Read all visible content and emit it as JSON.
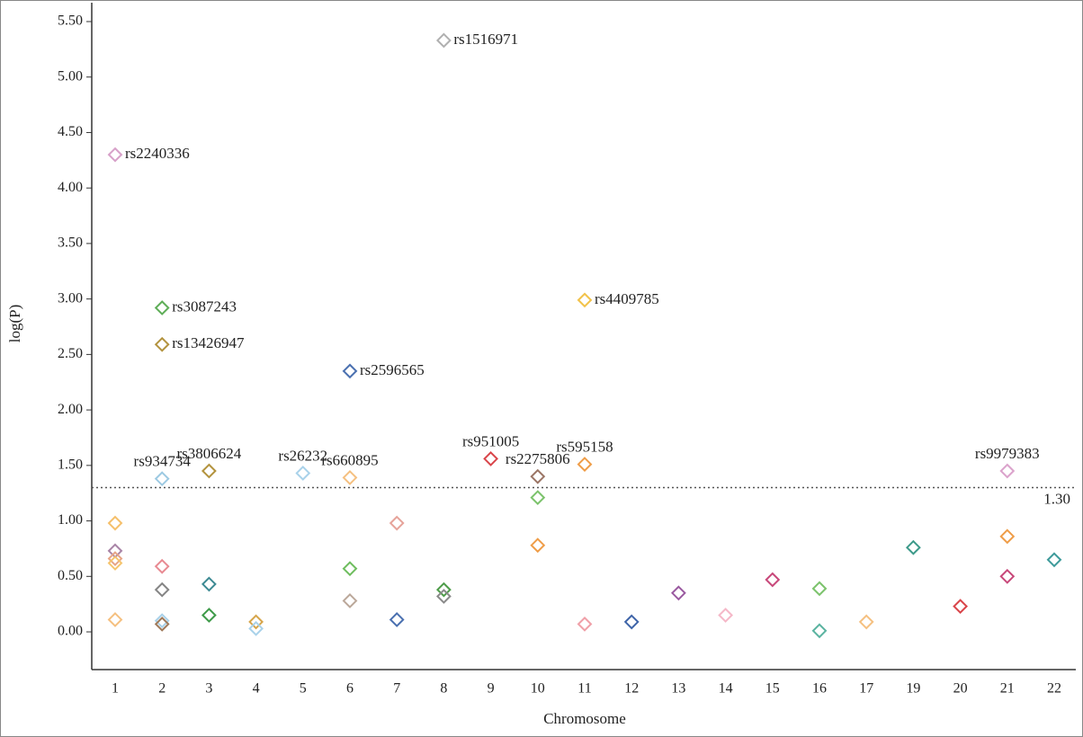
{
  "chart_data": {
    "type": "scatter",
    "x_label": "Chromosome",
    "y_label": "log(P)",
    "categories": [
      "1",
      "2",
      "3",
      "4",
      "5",
      "6",
      "7",
      "8",
      "9",
      "10",
      "11",
      "12",
      "13",
      "14",
      "15",
      "16",
      "17",
      "19",
      "20",
      "21",
      "22"
    ],
    "ylim": [
      -0.34,
      5.67
    ],
    "yticks": [
      {
        "value": 0,
        "label": "0.00"
      },
      {
        "value": 0.5,
        "label": "0.50"
      },
      {
        "value": 1,
        "label": "1.00"
      },
      {
        "value": 1.5,
        "label": "1.50"
      },
      {
        "value": 2,
        "label": "2.00"
      },
      {
        "value": 2.5,
        "label": "2.50"
      },
      {
        "value": 3,
        "label": "3.00"
      },
      {
        "value": 3.5,
        "label": "3.50"
      },
      {
        "value": 4,
        "label": "4.00"
      },
      {
        "value": 4.5,
        "label": "4.50"
      },
      {
        "value": 5,
        "label": "5.00"
      },
      {
        "value": 5.5,
        "label": "5.50"
      }
    ],
    "threshold": {
      "value": 1.3,
      "label": "1.30"
    },
    "points": [
      {
        "x": "1",
        "value": 4.3,
        "color": "#d7a1c9",
        "label": "rs2240336"
      },
      {
        "x": "1",
        "value": 0.98,
        "color": "#f5bf6a"
      },
      {
        "x": "1",
        "value": 0.73,
        "color": "#a883a6"
      },
      {
        "x": "1",
        "value": 0.66,
        "color": "#e6a587"
      },
      {
        "x": "1",
        "value": 0.62,
        "color": "#f5c46d"
      },
      {
        "x": "1",
        "value": 0.11,
        "color": "#f5c080"
      },
      {
        "x": "2",
        "value": 2.92,
        "color": "#5fae58",
        "label": "rs3087243"
      },
      {
        "x": "2",
        "value": 2.59,
        "color": "#b3933e",
        "label": "rs13426947"
      },
      {
        "x": "2",
        "value": 1.38,
        "color": "#9cc9e2",
        "label": "rs934734"
      },
      {
        "x": "2",
        "value": 0.59,
        "color": "#e88a92"
      },
      {
        "x": "2",
        "value": 0.38,
        "color": "#858585"
      },
      {
        "x": "2",
        "value": 0.1,
        "color": "#a9d2ea"
      },
      {
        "x": "2",
        "value": 0.07,
        "color": "#a07a5a"
      },
      {
        "x": "3",
        "value": 1.45,
        "color": "#b3933e",
        "label": "rs3806624"
      },
      {
        "x": "3",
        "value": 0.43,
        "color": "#3d8a93"
      },
      {
        "x": "3",
        "value": 0.15,
        "color": "#3f9b4a"
      },
      {
        "x": "4",
        "value": 0.09,
        "color": "#d6a54a"
      },
      {
        "x": "4",
        "value": 0.03,
        "color": "#a9d2ea"
      },
      {
        "x": "5",
        "value": 1.43,
        "color": "#a9d2ea",
        "label": "rs26232"
      },
      {
        "x": "6",
        "value": 2.35,
        "color": "#4a70b0",
        "label": "rs2596565"
      },
      {
        "x": "6",
        "value": 1.39,
        "color": "#f5c080",
        "label": "rs660895"
      },
      {
        "x": "6",
        "value": 0.57,
        "color": "#6ebd5e"
      },
      {
        "x": "6",
        "value": 0.28,
        "color": "#bba89a"
      },
      {
        "x": "7",
        "value": 0.98,
        "color": "#e6a39a"
      },
      {
        "x": "7",
        "value": 0.11,
        "color": "#4a70b0"
      },
      {
        "x": "8",
        "value": 5.33,
        "color": "#b0b0b0",
        "label": "rs1516971"
      },
      {
        "x": "8",
        "value": 0.38,
        "color": "#4f9d4a"
      },
      {
        "x": "8",
        "value": 0.32,
        "color": "#8a8a8a"
      },
      {
        "x": "9",
        "value": 1.56,
        "color": "#d9454a",
        "label": "rs951005"
      },
      {
        "x": "10",
        "value": 1.4,
        "color": "#9b7565",
        "label": "rs2275806"
      },
      {
        "x": "10",
        "value": 1.21,
        "color": "#7cc36c"
      },
      {
        "x": "10",
        "value": 0.78,
        "color": "#ef9d48"
      },
      {
        "x": "11",
        "value": 2.99,
        "color": "#f2c24a",
        "label": "rs4409785"
      },
      {
        "x": "11",
        "value": 1.51,
        "color": "#ef9d48",
        "label": "rs595158"
      },
      {
        "x": "11",
        "value": 0.07,
        "color": "#f0a0a8"
      },
      {
        "x": "12",
        "value": 0.09,
        "color": "#3e64a8"
      },
      {
        "x": "13",
        "value": 0.35,
        "color": "#9a5aa0"
      },
      {
        "x": "14",
        "value": 0.15,
        "color": "#f5b8c8"
      },
      {
        "x": "15",
        "value": 0.47,
        "color": "#c8487a"
      },
      {
        "x": "16",
        "value": 0.39,
        "color": "#7cc36c"
      },
      {
        "x": "16",
        "value": 0.01,
        "color": "#5ab3a0"
      },
      {
        "x": "17",
        "value": 0.09,
        "color": "#f5c080"
      },
      {
        "x": "19",
        "value": 0.76,
        "color": "#3d9a8a"
      },
      {
        "x": "20",
        "value": 0.23,
        "color": "#d9454a"
      },
      {
        "x": "21",
        "value": 1.45,
        "color": "#dba3cc",
        "label": "rs9979383"
      },
      {
        "x": "21",
        "value": 0.86,
        "color": "#ef9d48"
      },
      {
        "x": "21",
        "value": 0.5,
        "color": "#c8487a"
      },
      {
        "x": "22",
        "value": 0.65,
        "color": "#3d9a9a"
      }
    ]
  }
}
